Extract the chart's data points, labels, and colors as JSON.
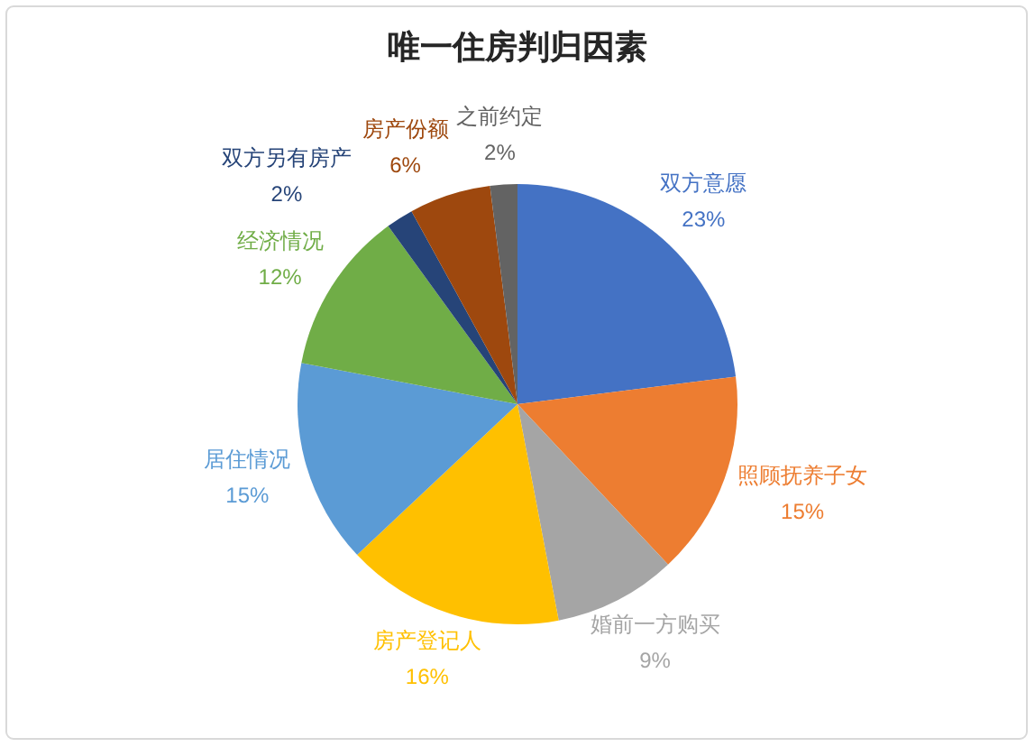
{
  "chart_data": {
    "type": "pie",
    "title": "唯一住房判归因素",
    "categories": [
      "双方意愿",
      "照顾抚养子女",
      "婚前一方购买",
      "房产登记人",
      "居住情况",
      "经济情况",
      "双方另有房产",
      "房产份额",
      "之前约定"
    ],
    "values": [
      23,
      15,
      9,
      16,
      15,
      12,
      2,
      6,
      2
    ],
    "value_labels": [
      "23%",
      "15%",
      "9%",
      "16%",
      "15%",
      "12%",
      "2%",
      "6%",
      "2%"
    ],
    "colors": [
      "#4472c4",
      "#ed7d31",
      "#a5a5a5",
      "#ffc000",
      "#5b9bd5",
      "#70ad47",
      "#264478",
      "#9e480e",
      "#636363"
    ]
  }
}
